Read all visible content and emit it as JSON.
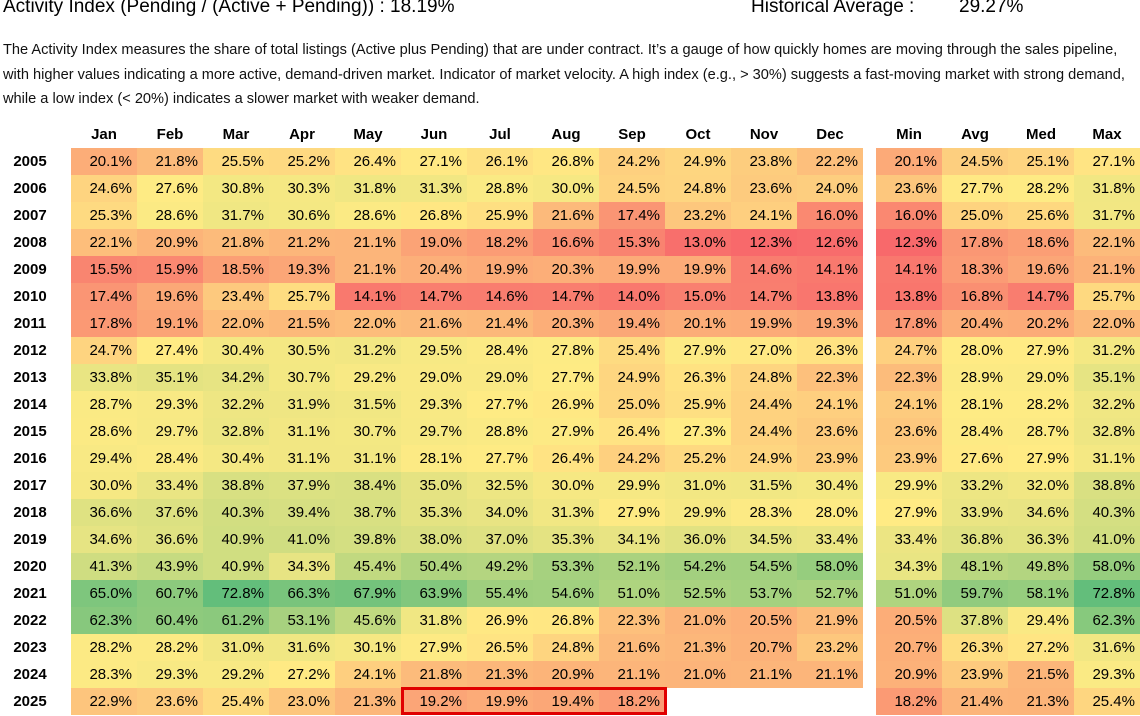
{
  "header": {
    "title": "Activity Index (Pending / (Active + Pending)) : 18.19%",
    "historical_label": "Historical Average :",
    "historical_value": "29.27%"
  },
  "description": "The Activity Index measures the share of total listings (Active plus Pending) that are under contract. It’s a gauge of how quickly homes are moving through the sales pipeline, with higher values indicating a more active, demand-driven market. Indicator of market velocity. A high index (e.g., > 30%) suggests a fast-moving market with strong demand, while a low index (< 20%) indicates a slower market with weaker demand.",
  "chart_data": {
    "type": "heatmap",
    "title": "Activity Index (Pending / (Active + Pending))",
    "months": [
      "Jan",
      "Feb",
      "Mar",
      "Apr",
      "May",
      "Jun",
      "Jul",
      "Aug",
      "Sep",
      "Oct",
      "Nov",
      "Dec"
    ],
    "stat_columns": [
      "Min",
      "Avg",
      "Med",
      "Max"
    ],
    "years": [
      "2005",
      "2006",
      "2007",
      "2008",
      "2009",
      "2010",
      "2011",
      "2012",
      "2013",
      "2014",
      "2015",
      "2016",
      "2017",
      "2018",
      "2019",
      "2020",
      "2021",
      "2022",
      "2023",
      "2024",
      "2025"
    ],
    "values": [
      [
        20.1,
        21.8,
        25.5,
        25.2,
        26.4,
        27.1,
        26.1,
        26.8,
        24.2,
        24.9,
        23.8,
        22.2
      ],
      [
        24.6,
        27.6,
        30.8,
        30.3,
        31.8,
        31.3,
        28.8,
        30.0,
        24.5,
        24.8,
        23.6,
        24.0
      ],
      [
        25.3,
        28.6,
        31.7,
        30.6,
        28.6,
        26.8,
        25.9,
        21.6,
        17.4,
        23.2,
        24.1,
        16.0
      ],
      [
        22.1,
        20.9,
        21.8,
        21.2,
        21.1,
        19.0,
        18.2,
        16.6,
        15.3,
        13.0,
        12.3,
        12.6
      ],
      [
        15.5,
        15.9,
        18.5,
        19.3,
        21.1,
        20.4,
        19.9,
        20.3,
        19.9,
        19.9,
        14.6,
        14.1
      ],
      [
        17.4,
        19.6,
        23.4,
        25.7,
        14.1,
        14.7,
        14.6,
        14.7,
        14.0,
        15.0,
        14.7,
        13.8
      ],
      [
        17.8,
        19.1,
        22.0,
        21.5,
        22.0,
        21.6,
        21.4,
        20.3,
        19.4,
        20.1,
        19.9,
        19.3
      ],
      [
        24.7,
        27.4,
        30.4,
        30.5,
        31.2,
        29.5,
        28.4,
        27.8,
        25.4,
        27.9,
        27.0,
        26.3
      ],
      [
        33.8,
        35.1,
        34.2,
        30.7,
        29.2,
        29.0,
        29.0,
        27.7,
        24.9,
        26.3,
        24.8,
        22.3
      ],
      [
        28.7,
        29.3,
        32.2,
        31.9,
        31.5,
        29.3,
        27.7,
        26.9,
        25.0,
        25.9,
        24.4,
        24.1
      ],
      [
        28.6,
        29.7,
        32.8,
        31.1,
        30.7,
        29.7,
        28.8,
        27.9,
        26.4,
        27.3,
        24.4,
        23.6
      ],
      [
        29.4,
        28.4,
        30.4,
        31.1,
        31.1,
        28.1,
        27.7,
        26.4,
        24.2,
        25.2,
        24.9,
        23.9
      ],
      [
        30.0,
        33.4,
        38.8,
        37.9,
        38.4,
        35.0,
        32.5,
        30.0,
        29.9,
        31.0,
        31.5,
        30.4
      ],
      [
        36.6,
        37.6,
        40.3,
        39.4,
        38.7,
        35.3,
        34.0,
        31.3,
        27.9,
        29.9,
        28.3,
        28.0
      ],
      [
        34.6,
        36.6,
        40.9,
        41.0,
        39.8,
        38.0,
        37.0,
        35.3,
        34.1,
        36.0,
        34.5,
        33.4
      ],
      [
        41.3,
        43.9,
        40.9,
        34.3,
        45.4,
        50.4,
        49.2,
        53.3,
        52.1,
        54.2,
        54.5,
        58.0
      ],
      [
        65.0,
        60.7,
        72.8,
        66.3,
        67.9,
        63.9,
        55.4,
        54.6,
        51.0,
        52.5,
        53.7,
        52.7
      ],
      [
        62.3,
        60.4,
        61.2,
        53.1,
        45.6,
        31.8,
        26.9,
        26.8,
        22.3,
        21.0,
        20.5,
        21.9
      ],
      [
        28.2,
        28.2,
        31.0,
        31.6,
        30.1,
        27.9,
        26.5,
        24.8,
        21.6,
        21.3,
        20.7,
        23.2
      ],
      [
        28.3,
        29.3,
        29.2,
        27.2,
        24.1,
        21.8,
        21.3,
        20.9,
        21.1,
        21.0,
        21.1,
        21.1
      ],
      [
        22.9,
        23.6,
        25.4,
        23.0,
        21.3,
        19.2,
        19.9,
        19.4,
        18.2,
        null,
        null,
        null
      ]
    ],
    "stats": [
      [
        20.1,
        24.5,
        25.1,
        27.1
      ],
      [
        23.6,
        27.7,
        28.2,
        31.8
      ],
      [
        16.0,
        25.0,
        25.6,
        31.7
      ],
      [
        12.3,
        17.8,
        18.6,
        22.1
      ],
      [
        14.1,
        18.3,
        19.6,
        21.1
      ],
      [
        13.8,
        16.8,
        14.7,
        25.7
      ],
      [
        17.8,
        20.4,
        20.2,
        22.0
      ],
      [
        24.7,
        28.0,
        27.9,
        31.2
      ],
      [
        22.3,
        28.9,
        29.0,
        35.1
      ],
      [
        24.1,
        28.1,
        28.2,
        32.2
      ],
      [
        23.6,
        28.4,
        28.7,
        32.8
      ],
      [
        23.9,
        27.6,
        27.9,
        31.1
      ],
      [
        29.9,
        33.2,
        32.0,
        38.8
      ],
      [
        27.9,
        33.9,
        34.6,
        40.3
      ],
      [
        33.4,
        36.8,
        36.3,
        41.0
      ],
      [
        34.3,
        48.1,
        49.8,
        58.0
      ],
      [
        51.0,
        59.7,
        58.1,
        72.8
      ],
      [
        20.5,
        37.8,
        29.4,
        62.3
      ],
      [
        20.7,
        26.3,
        27.2,
        31.6
      ],
      [
        20.9,
        23.9,
        21.5,
        29.3
      ],
      [
        18.2,
        21.4,
        21.3,
        25.4
      ]
    ],
    "value_suffix": "%",
    "highlight": {
      "year": "2025",
      "months": [
        "Jun",
        "Jul",
        "Aug",
        "Sep"
      ]
    },
    "color_scale": {
      "low": "#f8696b",
      "mid": "#ffeb84",
      "high": "#63be7b"
    }
  }
}
